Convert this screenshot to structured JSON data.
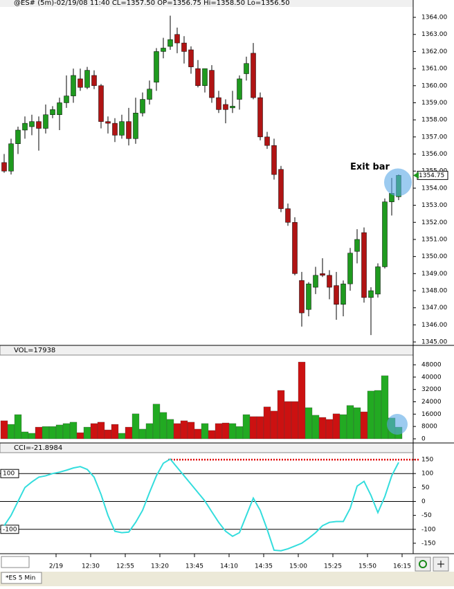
{
  "chart_data": [
    {
      "type": "candlestick",
      "title": "@ES# (5m)-02/19/08 11:40 CL=1357.50 OP=1356.75 Hi=1358.50 Lo=1356.50",
      "up_color": "#1f9a1f",
      "down_color": "#b01414",
      "open": [
        1355.5,
        1355.0,
        1356.6,
        1357.4,
        1357.6,
        1357.9,
        1357.5,
        1358.3,
        1358.3,
        1359.0,
        1359.4,
        1360.4,
        1359.9,
        1360.6,
        1360.0,
        1357.9,
        1357.8,
        1357.1,
        1357.9,
        1356.9,
        1358.4,
        1359.2,
        1360.2,
        1362.0,
        1362.3,
        1363.0,
        1362.5,
        1362.1,
        1361.0,
        1360.0,
        1360.9,
        1359.3,
        1358.9,
        1358.7,
        1359.2,
        1360.7,
        1361.9,
        1359.3,
        1357.0,
        1356.5,
        1355.1,
        1352.8,
        1352.0,
        1348.6,
        1346.9,
        1348.2,
        1349.0,
        1348.9,
        1348.3,
        1347.2,
        1348.4,
        1350.3,
        1351.4,
        1347.6,
        1347.8,
        1349.4,
        1353.2,
        1353.5
      ],
      "high": [
        1356.0,
        1356.9,
        1357.6,
        1358.2,
        1358.3,
        1358.2,
        1358.9,
        1358.8,
        1359.3,
        1360.6,
        1361.0,
        1361.0,
        1361.1,
        1360.9,
        1360.1,
        1358.2,
        1358.1,
        1358.3,
        1358.7,
        1359.3,
        1359.6,
        1360.3,
        1362.2,
        1362.8,
        1364.1,
        1363.4,
        1362.9,
        1362.3,
        1361.5,
        1361.0,
        1361.2,
        1359.7,
        1359.2,
        1359.7,
        1360.6,
        1361.7,
        1362.5,
        1359.6,
        1357.3,
        1356.9,
        1355.3,
        1353.1,
        1352.3,
        1349.1,
        1348.5,
        1349.4,
        1349.9,
        1349.2,
        1349.1,
        1348.6,
        1350.5,
        1351.6,
        1351.7,
        1348.2,
        1349.6,
        1353.4,
        1354.6,
        1354.8
      ],
      "low": [
        1354.9,
        1354.8,
        1356.0,
        1356.9,
        1357.1,
        1356.2,
        1357.2,
        1358.1,
        1357.4,
        1358.7,
        1359.0,
        1359.7,
        1359.8,
        1359.8,
        1357.5,
        1357.2,
        1356.7,
        1356.9,
        1356.5,
        1356.6,
        1358.2,
        1358.9,
        1359.7,
        1361.6,
        1362.1,
        1361.9,
        1361.3,
        1360.7,
        1359.9,
        1359.6,
        1359.0,
        1358.4,
        1357.8,
        1358.4,
        1358.6,
        1360.3,
        1359.2,
        1356.8,
        1356.3,
        1354.5,
        1352.6,
        1351.8,
        1348.9,
        1345.9,
        1346.5,
        1347.8,
        1348.8,
        1347.5,
        1346.3,
        1346.5,
        1348.0,
        1349.6,
        1347.3,
        1345.4,
        1347.6,
        1349.3,
        1352.4,
        1353.3
      ],
      "close": [
        1355.0,
        1356.6,
        1357.4,
        1357.8,
        1357.9,
        1357.5,
        1358.3,
        1358.6,
        1359.0,
        1359.4,
        1360.6,
        1359.9,
        1360.9,
        1360.0,
        1357.9,
        1357.8,
        1357.1,
        1357.9,
        1356.9,
        1358.4,
        1359.2,
        1359.8,
        1362.0,
        1362.2,
        1362.7,
        1362.5,
        1362.0,
        1361.1,
        1360.0,
        1361.0,
        1359.3,
        1358.6,
        1358.6,
        1358.8,
        1360.4,
        1361.3,
        1359.3,
        1357.0,
        1356.5,
        1354.8,
        1352.8,
        1352.0,
        1349.0,
        1346.7,
        1348.4,
        1348.9,
        1348.9,
        1348.2,
        1347.2,
        1348.4,
        1350.2,
        1351.0,
        1347.6,
        1348.0,
        1349.4,
        1353.2,
        1353.7,
        1354.75
      ],
      "last_label": "1354.75",
      "annotation": "Exit bar",
      "annotation_color": "#e01010",
      "ylim": [
        1344.84,
        1364.61
      ],
      "yticks": [
        {
          "value": 1345,
          "label": "1345.00"
        },
        {
          "value": 1346,
          "label": "1346.00"
        },
        {
          "value": 1347,
          "label": "1347.00"
        },
        {
          "value": 1348,
          "label": "1348.00"
        },
        {
          "value": 1349,
          "label": "1349.00"
        },
        {
          "value": 1350,
          "label": "1350.00"
        },
        {
          "value": 1351,
          "label": "1351.00"
        },
        {
          "value": 1352,
          "label": "1352.00"
        },
        {
          "value": 1353,
          "label": "1353.00"
        },
        {
          "value": 1354,
          "label": "1354.00"
        },
        {
          "value": 1355,
          "label": "1355.00"
        },
        {
          "value": 1356,
          "label": "1356.00"
        },
        {
          "value": 1357,
          "label": "1357.00"
        },
        {
          "value": 1358,
          "label": "1358.00"
        },
        {
          "value": 1359,
          "label": "1359.00"
        },
        {
          "value": 1360,
          "label": "1360.00"
        },
        {
          "value": 1361,
          "label": "1361.00"
        },
        {
          "value": 1362,
          "label": "1362.00"
        },
        {
          "value": 1363,
          "label": "1363.00"
        },
        {
          "value": 1364,
          "label": "1364.00"
        }
      ]
    },
    {
      "type": "bar",
      "title": "VOL=17938",
      "up_color": "#22aa22",
      "down_color": "#cc1111",
      "values": [
        11700,
        9400,
        15700,
        4500,
        3600,
        7600,
        8000,
        8000,
        9000,
        9900,
        10800,
        4000,
        7600,
        9900,
        10800,
        5800,
        9400,
        3600,
        7600,
        16200,
        6300,
        9900,
        22500,
        17100,
        12600,
        9900,
        11700,
        10800,
        6300,
        9900,
        5400,
        9900,
        10300,
        9900,
        8000,
        15700,
        14400,
        14400,
        20700,
        18000,
        31400,
        24200,
        24200,
        49800,
        20200,
        15300,
        13900,
        12600,
        16200,
        15700,
        21600,
        20200,
        17500,
        31000,
        31400,
        40900,
        13500,
        7600
      ],
      "ylim": [
        -1800,
        54300
      ],
      "yticks": [
        0,
        8000,
        16000,
        24000,
        32000,
        40000,
        48000
      ]
    },
    {
      "type": "line",
      "title": "CCI=-21.8984",
      "color": "#33dddd",
      "values": [
        -87,
        -50,
        0,
        50,
        70,
        87,
        92,
        100,
        105,
        112,
        120,
        125,
        115,
        87,
        25,
        -50,
        -107,
        -112,
        -110,
        -75,
        -32,
        32,
        92,
        137,
        152,
        122,
        92,
        62,
        32,
        2,
        -37,
        -75,
        -107,
        -125,
        -112,
        -50,
        12,
        -32,
        -100,
        -175,
        -177,
        -170,
        -160,
        -150,
        -132,
        -112,
        -87,
        -75,
        -72,
        -72,
        -25,
        55,
        72,
        22,
        -40,
        17,
        92,
        140
      ],
      "ref_lines": [
        {
          "value": 100,
          "label": "100"
        },
        {
          "value": 0
        },
        {
          "value": -100,
          "label": "-100"
        }
      ],
      "alert_line": {
        "value": 150,
        "color": "#e00000"
      },
      "ylim": [
        -187.5,
        175
      ],
      "yticks": [
        150,
        100,
        50,
        0,
        -50,
        -100,
        -150
      ],
      "xticks": [
        {
          "value": 7.5,
          "label": "2/19"
        },
        {
          "value": 12.5,
          "label": "12:30"
        },
        {
          "value": 17.5,
          "label": "12:55"
        },
        {
          "value": 22.5,
          "label": "13:20"
        },
        {
          "value": 27.5,
          "label": "13:45"
        },
        {
          "value": 32.5,
          "label": "14:10"
        },
        {
          "value": 37.5,
          "label": "14:35"
        },
        {
          "value": 42.5,
          "label": "15:00"
        },
        {
          "value": 47.5,
          "label": "15:25"
        },
        {
          "value": 52.5,
          "label": "15:50"
        },
        {
          "value": 57.5,
          "label": "16:15"
        }
      ]
    }
  ],
  "tab": "*ES 5 Min"
}
